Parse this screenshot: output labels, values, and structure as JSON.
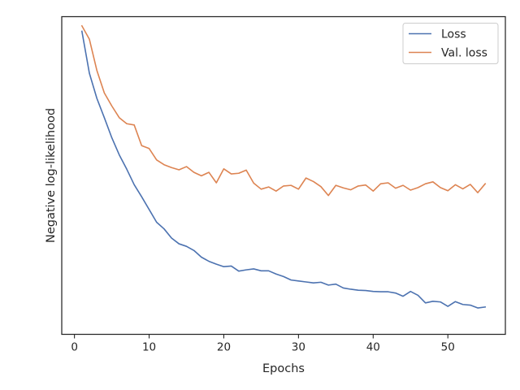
{
  "chart_data": {
    "type": "line",
    "title": "",
    "xlabel": "Epochs",
    "ylabel": "Negative log-likelihood",
    "xlim": [
      -1.7,
      57.7
    ],
    "ylim": [
      0.0,
      1.0
    ],
    "y_tick_labels_shown": false,
    "x_ticks": [
      0,
      10,
      20,
      30,
      40,
      50
    ],
    "x_tick_labels": [
      "0",
      "10",
      "20",
      "30",
      "40",
      "50"
    ],
    "grid": false,
    "legend": {
      "position": "top-right"
    },
    "x": [
      1,
      2,
      3,
      4,
      5,
      6,
      7,
      8,
      9,
      10,
      11,
      12,
      13,
      14,
      15,
      16,
      17,
      18,
      19,
      20,
      21,
      22,
      23,
      24,
      25,
      26,
      27,
      28,
      29,
      30,
      31,
      32,
      33,
      34,
      35,
      36,
      37,
      38,
      39,
      40,
      41,
      42,
      43,
      44,
      45,
      46,
      47,
      48,
      49,
      50,
      51,
      52,
      53,
      54,
      55
    ],
    "series": [
      {
        "name": "Loss",
        "color": "#4c72b0",
        "values": [
          0.954,
          0.822,
          0.743,
          0.682,
          0.619,
          0.565,
          0.52,
          0.471,
          0.433,
          0.393,
          0.353,
          0.332,
          0.303,
          0.285,
          0.277,
          0.264,
          0.243,
          0.23,
          0.221,
          0.213,
          0.215,
          0.199,
          0.203,
          0.206,
          0.2,
          0.2,
          0.19,
          0.182,
          0.171,
          0.168,
          0.165,
          0.162,
          0.164,
          0.155,
          0.158,
          0.146,
          0.142,
          0.139,
          0.138,
          0.135,
          0.134,
          0.134,
          0.13,
          0.12,
          0.135,
          0.123,
          0.099,
          0.104,
          0.102,
          0.088,
          0.103,
          0.094,
          0.092,
          0.083,
          0.086
        ]
      },
      {
        "name": "Val. loss",
        "color": "#dd8452",
        "values": [
          0.971,
          0.929,
          0.831,
          0.76,
          0.719,
          0.682,
          0.663,
          0.659,
          0.594,
          0.585,
          0.549,
          0.534,
          0.525,
          0.518,
          0.528,
          0.51,
          0.499,
          0.51,
          0.477,
          0.521,
          0.505,
          0.507,
          0.517,
          0.476,
          0.457,
          0.464,
          0.451,
          0.467,
          0.469,
          0.457,
          0.492,
          0.481,
          0.465,
          0.437,
          0.469,
          0.461,
          0.455,
          0.467,
          0.47,
          0.451,
          0.474,
          0.477,
          0.46,
          0.469,
          0.454,
          0.462,
          0.474,
          0.48,
          0.462,
          0.452,
          0.471,
          0.458,
          0.472,
          0.446,
          0.474
        ]
      }
    ]
  }
}
